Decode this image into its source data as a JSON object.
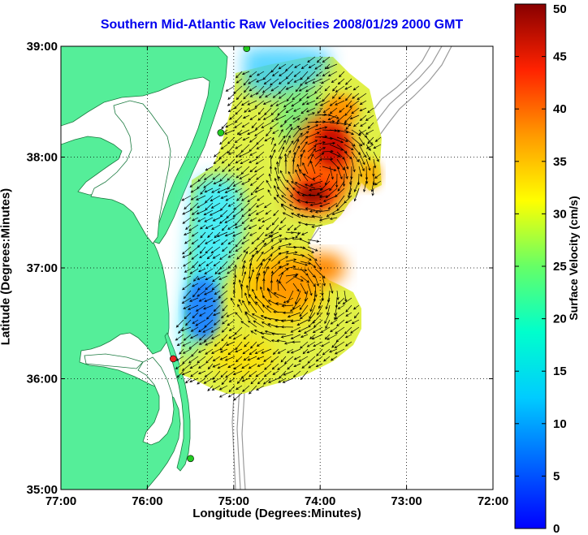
{
  "chart_data": {
    "type": "heatmap",
    "title": "Southern Mid-Atlantic Raw Velocities 2008/01/29 2000 GMT",
    "xlabel": "Longitude (Degrees:Minutes)",
    "ylabel": "Latitude (Degrees:Minutes)",
    "colorbar_label": "Surface Velocity (cm/s)",
    "xlim": [
      -77,
      -72
    ],
    "ylim": [
      35,
      39
    ],
    "x_ticks": [
      {
        "value": -77,
        "label": "77:00"
      },
      {
        "value": -76,
        "label": "76:00"
      },
      {
        "value": -75,
        "label": "75:00"
      },
      {
        "value": -74,
        "label": "74:00"
      },
      {
        "value": -73,
        "label": "73:00"
      },
      {
        "value": -72,
        "label": "72:00"
      }
    ],
    "y_ticks": [
      {
        "value": 35,
        "label": "35:00"
      },
      {
        "value": 36,
        "label": "36:00"
      },
      {
        "value": 37,
        "label": "37:00"
      },
      {
        "value": 38,
        "label": "38:00"
      },
      {
        "value": 39,
        "label": "39:00"
      }
    ],
    "colorbar": {
      "range": [
        0,
        50
      ],
      "ticks": [
        {
          "value": 0,
          "label": "0"
        },
        {
          "value": 5,
          "label": "5"
        },
        {
          "value": 10,
          "label": "10"
        },
        {
          "value": 15,
          "label": "15"
        },
        {
          "value": 20,
          "label": "20"
        },
        {
          "value": 25,
          "label": "25"
        },
        {
          "value": 30,
          "label": "30"
        },
        {
          "value": 35,
          "label": "35"
        },
        {
          "value": 40,
          "label": "40"
        },
        {
          "value": 45,
          "label": "45"
        },
        {
          "value": 50,
          "label": "50"
        }
      ],
      "colormap": "jet"
    },
    "grid": true,
    "land_color": "#55ee99",
    "station_markers": [
      {
        "lon": -74.85,
        "lat": 38.98,
        "color": "#22cc22"
      },
      {
        "lon": -75.15,
        "lat": 38.22,
        "color": "#22cc22"
      },
      {
        "lon": -75.7,
        "lat": 36.18,
        "color": "#ee2222"
      },
      {
        "lon": -75.5,
        "lat": 35.28,
        "color": "#22cc22"
      }
    ],
    "velocity_peaks": [
      {
        "lon": -73.9,
        "lat": 38.0,
        "speed_cm_s": 44
      },
      {
        "lon": -74.1,
        "lat": 37.65,
        "speed_cm_s": 47
      },
      {
        "lon": -74.4,
        "lat": 36.75,
        "speed_cm_s": 33
      }
    ]
  }
}
